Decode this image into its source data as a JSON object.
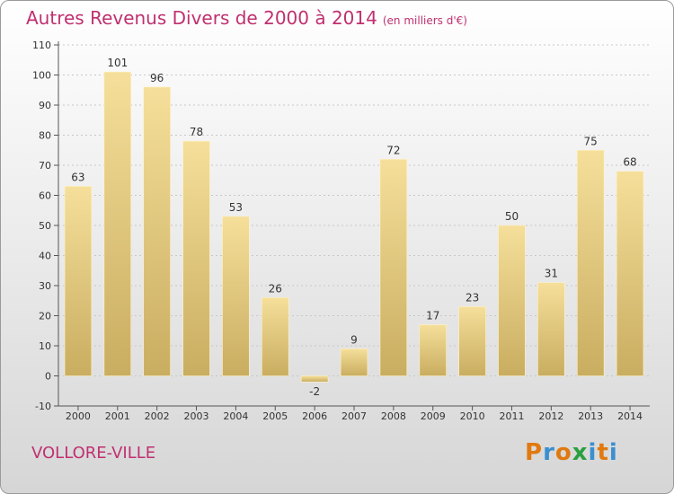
{
  "title": "Autres Revenus Divers de 2000 à 2014",
  "unit": "(en milliers d'€)",
  "commune": "VOLLORE-VILLE",
  "logo": {
    "letters": [
      "P",
      "r",
      "o",
      "x",
      "i",
      "t",
      "i"
    ],
    "colors": [
      "#e07a10",
      "#3a8fd0",
      "#e07a10",
      "#2aa040",
      "#3a8fd0",
      "#e07a10",
      "#3a8fd0"
    ]
  },
  "colors": {
    "bar_light": "#f5df9a",
    "bar_dark": "#c9ad60",
    "grid": "#c8c8c8",
    "title": "#c03070"
  },
  "chart_data": {
    "type": "bar",
    "categories": [
      "2000",
      "2001",
      "2002",
      "2003",
      "2004",
      "2005",
      "2006",
      "2007",
      "2008",
      "2009",
      "2010",
      "2011",
      "2012",
      "2013",
      "2014"
    ],
    "values": [
      63,
      101,
      96,
      78,
      53,
      26,
      -2,
      9,
      72,
      17,
      23,
      50,
      31,
      75,
      68
    ],
    "yticks": [
      -10,
      0,
      10,
      20,
      30,
      40,
      50,
      60,
      70,
      80,
      90,
      100,
      110
    ],
    "ylim": [
      -10,
      110
    ],
    "grid": true
  }
}
